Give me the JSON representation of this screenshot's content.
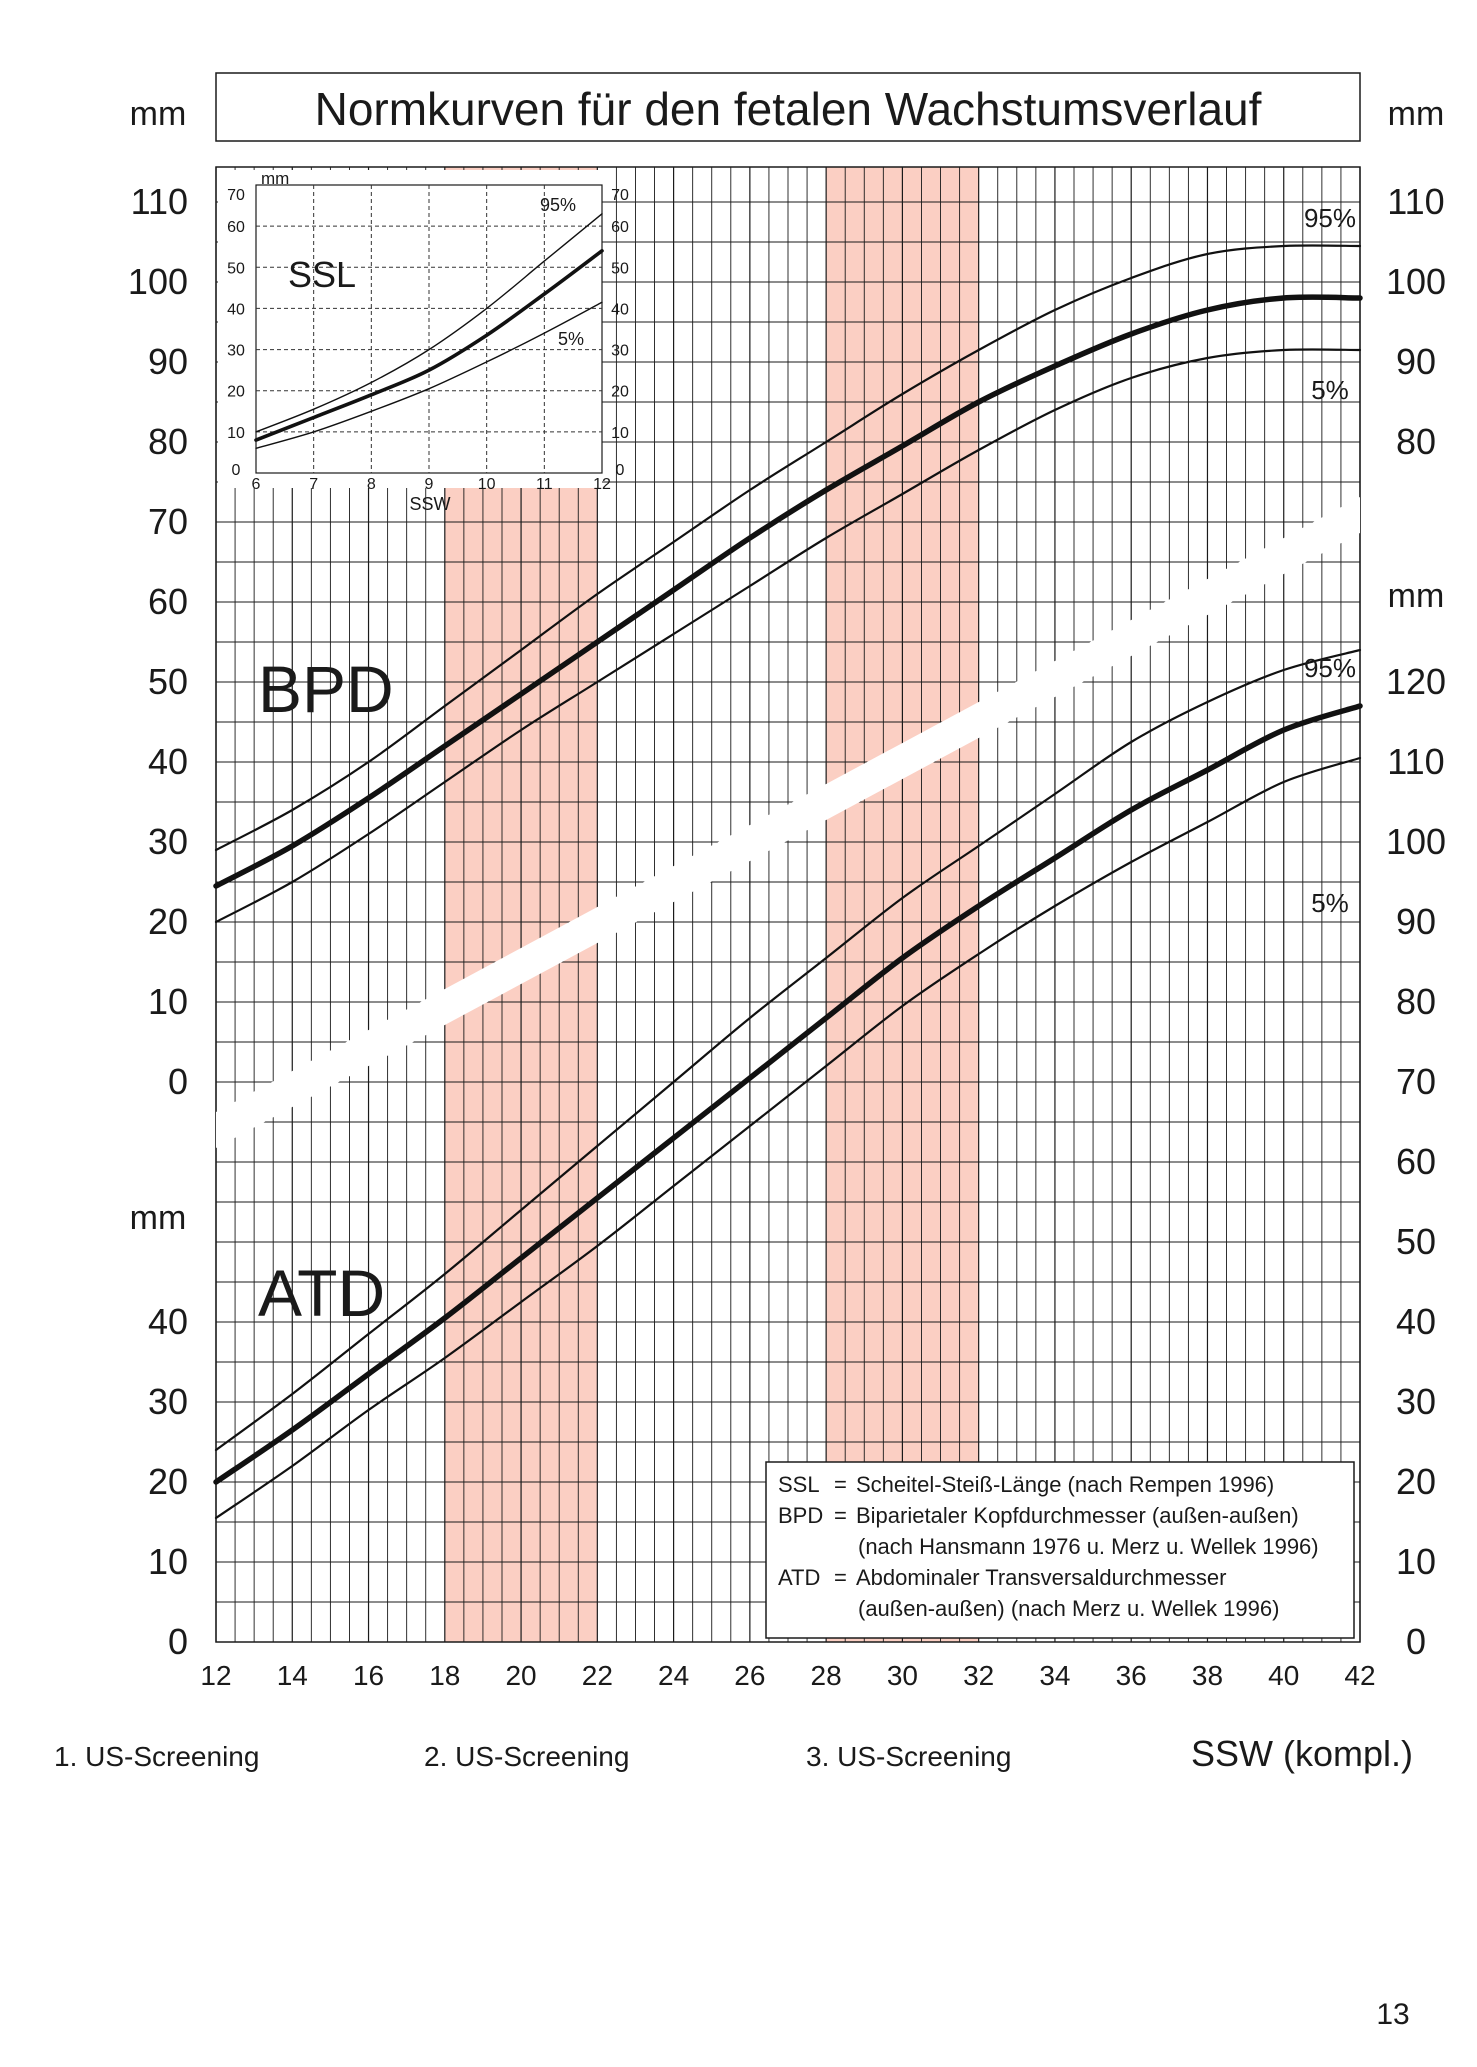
{
  "chart_data": {
    "type": "line",
    "title": "Normkurven für den fetalen Wachstumsverlauf",
    "unit_label": "mm",
    "xlabel": "SSW (kompl.)",
    "x_ticks": [
      "12",
      "14",
      "16",
      "18",
      "20",
      "22",
      "24",
      "26",
      "28",
      "30",
      "32",
      "34",
      "36",
      "38",
      "40",
      "42"
    ],
    "xlim": [
      12,
      42
    ],
    "screening_labels": [
      "1. US-Screening",
      "2. US-Screening",
      "3. US-Screening"
    ],
    "screening_bands": [
      [
        18,
        22
      ],
      [
        28,
        32
      ]
    ],
    "colors": {
      "band": "#fbcfc3",
      "grid": "#1a1a1a",
      "curve": "#111111"
    },
    "bpd": {
      "label": "BPD",
      "ylim": [
        0,
        110
      ],
      "y_ticks": [
        "0",
        "10",
        "20",
        "30",
        "40",
        "50",
        "60",
        "70",
        "80",
        "90",
        "100",
        "110"
      ],
      "percentile_labels": [
        "95%",
        "5%"
      ],
      "x": [
        12,
        14,
        16,
        18,
        20,
        22,
        24,
        26,
        28,
        30,
        32,
        34,
        36,
        38,
        40,
        42
      ],
      "series": [
        {
          "name": "95%",
          "values": [
            29,
            34,
            40,
            47,
            54,
            61,
            67.5,
            74,
            80,
            86,
            91.5,
            96.5,
            100.5,
            103.5,
            104.5,
            104.5
          ]
        },
        {
          "name": "50%",
          "values": [
            24.5,
            29.5,
            35.5,
            42,
            48.5,
            55,
            61.5,
            68,
            74,
            79.5,
            85,
            89.5,
            93.5,
            96.5,
            98,
            98
          ]
        },
        {
          "name": "5%",
          "values": [
            20,
            25,
            31,
            37.5,
            44,
            50,
            56,
            62,
            68,
            73.5,
            79,
            84,
            88,
            90.5,
            91.5,
            91.5
          ]
        }
      ]
    },
    "atd": {
      "label": "ATD",
      "ylim": [
        0,
        120
      ],
      "left_ticks": [
        "0",
        "10",
        "20",
        "30",
        "40"
      ],
      "right_ticks": [
        "0",
        "10",
        "20",
        "30",
        "40",
        "50",
        "60",
        "70",
        "80",
        "90",
        "100",
        "110",
        "120"
      ],
      "percentile_labels": [
        "95%",
        "5%"
      ],
      "x": [
        12,
        14,
        16,
        18,
        20,
        22,
        24,
        26,
        28,
        30,
        32,
        34,
        36,
        38,
        40,
        42
      ],
      "series": [
        {
          "name": "95%",
          "values": [
            24,
            31,
            38.5,
            46,
            54,
            62,
            70,
            78,
            85.5,
            93,
            99.5,
            106,
            112.5,
            117.5,
            121.5,
            124
          ]
        },
        {
          "name": "50%",
          "values": [
            20,
            26.5,
            33.5,
            40.5,
            48,
            55.5,
            63,
            70.5,
            78,
            85.5,
            92,
            98,
            104,
            109,
            114,
            117
          ]
        },
        {
          "name": "5%",
          "values": [
            15.5,
            22,
            29,
            35.5,
            42.5,
            49.5,
            57,
            64.5,
            72,
            79.5,
            86,
            92,
            97.5,
            102.5,
            107.5,
            110.5
          ]
        }
      ]
    },
    "ssl": {
      "label": "SSL",
      "unit_label": "mm",
      "xlabel": "SSW",
      "x_ticks": [
        "6",
        "7",
        "8",
        "9",
        "10",
        "11",
        "12"
      ],
      "y_ticks": [
        "0",
        "10",
        "20",
        "30",
        "40",
        "50",
        "60",
        "70"
      ],
      "ylim": [
        0,
        70
      ],
      "xlim": [
        6,
        12
      ],
      "percentile_labels": [
        "95%",
        "5%"
      ],
      "x": [
        6,
        7,
        8,
        9,
        10,
        11,
        12
      ],
      "series": [
        {
          "name": "95%",
          "values": [
            10,
            15.5,
            22,
            30,
            40,
            51.5,
            63
          ]
        },
        {
          "name": "50%",
          "values": [
            8,
            13.5,
            19,
            25,
            33.5,
            43.5,
            54
          ]
        },
        {
          "name": "5%",
          "values": [
            6,
            10,
            15,
            20.5,
            27,
            34,
            41.5
          ]
        }
      ]
    },
    "legend": {
      "rows": [
        [
          "SSL",
          "=",
          "Scheitel-Steiß-Länge (nach Rempen 1996)"
        ],
        [
          "BPD",
          "=",
          "Biparietaler Kopfdurchmesser (außen-außen)"
        ],
        [
          "",
          "",
          "(nach Hansmann 1976 u. Merz u. Wellek 1996)"
        ],
        [
          "ATD",
          "=",
          "Abdominaler Transversaldurchmesser"
        ],
        [
          "",
          "",
          "(außen-außen) (nach Merz u. Wellek 1996)"
        ]
      ]
    }
  },
  "page_number": "13"
}
